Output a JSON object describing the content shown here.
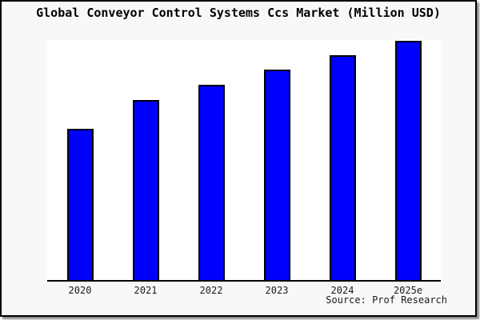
{
  "header": {
    "title": "Global Conveyor Control Systems Ccs Market (Million USD)"
  },
  "source": {
    "text": "Source: Prof Research"
  },
  "colors": {
    "bar_fill": "#0000ff",
    "bar_border": "#000000",
    "figure_background": "#f8f8f8",
    "plot_background": "#ffffff",
    "frame_border": "#000000",
    "text": "#1a1a1a"
  },
  "chart_data": {
    "type": "bar",
    "title": "Global Conveyor Control Systems Ccs Market (Million USD)",
    "categories": [
      "2020",
      "2021",
      "2022",
      "2023",
      "2024",
      "2025e"
    ],
    "values": [
      189,
      225,
      244,
      263,
      281,
      299
    ],
    "xlabel": "",
    "ylabel": "",
    "ylim": [
      0,
      300
    ],
    "grid": false,
    "legend": false,
    "y_axis_ticks_shown": false
  }
}
